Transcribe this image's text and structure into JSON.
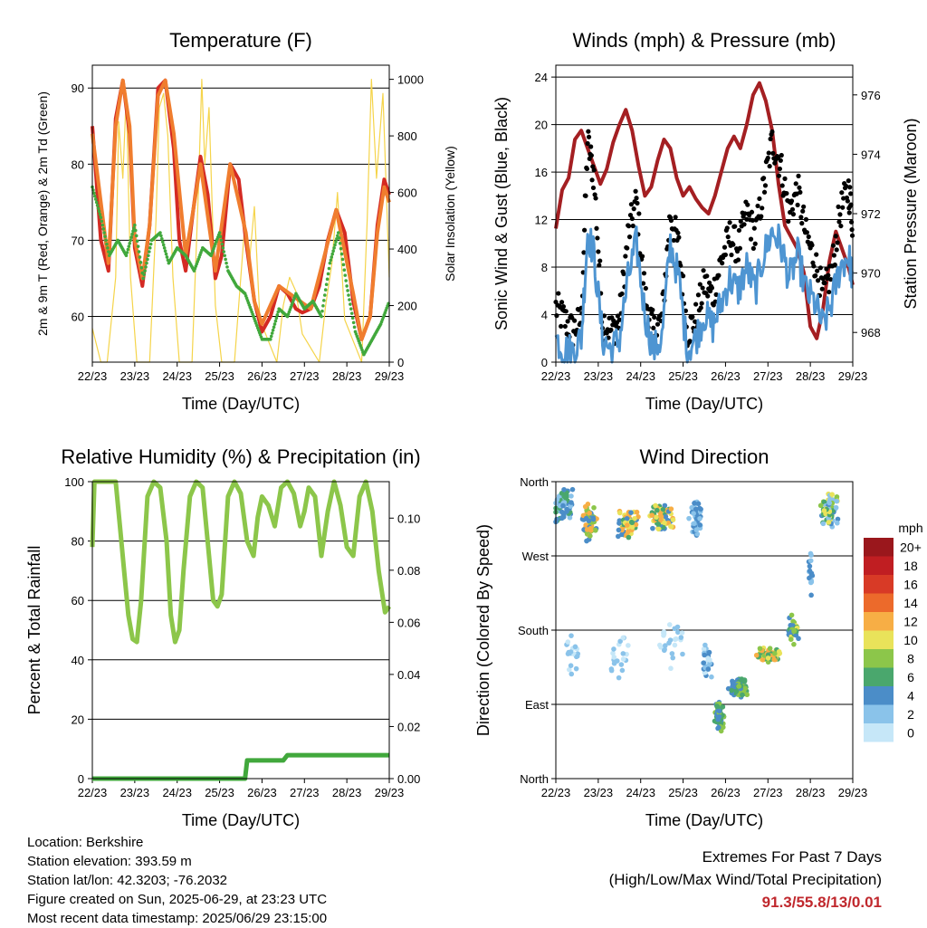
{
  "chart_data": [
    {
      "type": "line",
      "title": "Temperature (F)",
      "xlabel": "Time (Day/UTC)",
      "ylabel": "2m & 9m T (Red, Orange) & 2m Td (Green)",
      "ylabel_right": "Solar Insolation (Yellow)",
      "x_ticks": [
        "22/23",
        "23/23",
        "24/23",
        "25/23",
        "26/23",
        "27/23",
        "28/23",
        "29/23"
      ],
      "ylim": [
        54,
        93
      ],
      "y_ticks": [
        60,
        70,
        80,
        90
      ],
      "ylim_right": [
        0,
        1050
      ],
      "y_ticks_right": [
        0,
        200,
        400,
        600,
        800,
        1000
      ],
      "grid": "horizontal",
      "series": [
        {
          "label": "2m T",
          "color": "#d42a23",
          "style": "line",
          "x": [
            0,
            0.2,
            0.38,
            0.55,
            0.72,
            0.88,
            1.0,
            1.18,
            1.35,
            1.55,
            1.72,
            1.92,
            2.05,
            2.2,
            2.38,
            2.55,
            2.72,
            2.9,
            3.05,
            3.25,
            3.45,
            3.62,
            3.82,
            4.0,
            4.2,
            4.4,
            4.6,
            4.8,
            4.95,
            5.15,
            5.35,
            5.55,
            5.75,
            5.95,
            6.15,
            6.35,
            6.55,
            6.72,
            6.88,
            7.0
          ],
          "y": [
            85,
            70,
            66,
            86,
            91,
            84,
            69,
            64,
            72,
            90,
            91,
            82,
            70,
            66,
            74,
            81,
            76,
            65,
            68,
            80,
            78,
            70,
            62,
            58,
            60,
            64,
            63,
            61,
            60.5,
            61,
            64,
            70,
            74,
            71,
            62,
            57,
            60,
            72,
            78,
            76
          ]
        },
        {
          "label": "9m T",
          "color": "#f07d2e",
          "style": "line",
          "x": [
            0,
            0.38,
            0.55,
            0.72,
            0.88,
            1.0,
            1.18,
            1.35,
            1.55,
            1.72,
            1.92,
            2.2,
            2.38,
            2.55,
            2.9,
            3.25,
            3.62,
            3.82,
            4.0,
            4.4,
            5.15,
            5.75,
            6.15,
            6.35,
            6.55,
            6.72,
            6.88,
            7.0
          ],
          "y": [
            84,
            67,
            85,
            91,
            85,
            70,
            65,
            72,
            89,
            91,
            84,
            68,
            74,
            80,
            66,
            80,
            71,
            62,
            59,
            64,
            61,
            74,
            63,
            57,
            60,
            71,
            77,
            75
          ]
        },
        {
          "label": "2m Td",
          "color": "#41a83c",
          "style": "dots",
          "x": [
            0,
            0.2,
            0.4,
            0.6,
            0.8,
            1.0,
            1.2,
            1.4,
            1.6,
            1.8,
            2.0,
            2.2,
            2.4,
            2.6,
            2.8,
            3.0,
            3.2,
            3.4,
            3.6,
            3.8,
            4.0,
            4.2,
            4.4,
            4.6,
            4.8,
            5.0,
            5.2,
            5.4,
            5.6,
            5.8,
            6.0,
            6.2,
            6.4,
            6.6,
            6.8,
            7.0
          ],
          "y": [
            77,
            73,
            68,
            70,
            68,
            72,
            65,
            70,
            71,
            67,
            69,
            68,
            66,
            69,
            68,
            71,
            66,
            64,
            63,
            60,
            57,
            57,
            61,
            60,
            63,
            61,
            62,
            60,
            67,
            71,
            64,
            58,
            55,
            57,
            59,
            62
          ]
        },
        {
          "label": "Solar Insolation",
          "color": "#f5d44a",
          "style": "line",
          "axis": "right",
          "x": [
            0,
            0.2,
            0.35,
            0.55,
            0.62,
            0.72,
            0.8,
            0.9,
            1.05,
            1.35,
            1.5,
            1.58,
            1.68,
            1.78,
            1.9,
            2.05,
            2.35,
            2.5,
            2.58,
            2.65,
            2.75,
            2.9,
            3.05,
            3.35,
            3.5,
            3.6,
            3.7,
            3.82,
            3.95,
            4.35,
            4.5,
            4.65,
            4.8,
            4.95,
            5.35,
            5.5,
            5.65,
            5.78,
            5.95,
            6.35,
            6.48,
            6.58,
            6.7,
            6.85,
            7.0
          ],
          "y": [
            120,
            0,
            0,
            300,
            850,
            650,
            950,
            300,
            0,
            0,
            500,
            900,
            950,
            800,
            300,
            0,
            0,
            600,
            1000,
            700,
            900,
            200,
            0,
            0,
            300,
            500,
            350,
            550,
            150,
            0,
            200,
            300,
            250,
            100,
            0,
            200,
            350,
            600,
            150,
            0,
            500,
            1000,
            650,
            950,
            300
          ]
        }
      ]
    },
    {
      "type": "scatter",
      "title": "Winds (mph) & Pressure (mb)",
      "xlabel": "Time (Day/UTC)",
      "ylabel": "Sonic Wind & Gust (Blue, Black)",
      "ylabel_right": "Station Pressure (Maroon)",
      "x_ticks": [
        "22/23",
        "23/23",
        "24/23",
        "25/23",
        "26/23",
        "27/23",
        "28/23",
        "29/23"
      ],
      "ylim": [
        0,
        25
      ],
      "y_ticks": [
        0,
        4,
        8,
        12,
        16,
        20,
        24
      ],
      "ylim_right": [
        967,
        977
      ],
      "y_ticks_right": [
        968,
        970,
        972,
        974,
        976
      ],
      "grid": "horizontal",
      "series": [
        {
          "label": "Gust",
          "color": "#000000",
          "style": "dots",
          "x": [
            0,
            0.2,
            0.4,
            0.6,
            0.75,
            0.9,
            1.1,
            1.3,
            1.5,
            1.7,
            1.9,
            2.1,
            2.3,
            2.5,
            2.7,
            2.9,
            3.1,
            3.3,
            3.5,
            3.7,
            3.9,
            4.1,
            4.3,
            4.5,
            4.7,
            4.9,
            5.1,
            5.3,
            5.5,
            5.7,
            5.9,
            6.1,
            6.3,
            6.5,
            6.7,
            6.9,
            7.0
          ],
          "y": [
            4,
            3,
            2,
            3,
            18,
            15,
            3,
            2,
            3,
            10,
            13,
            5,
            2,
            3,
            12,
            9,
            2,
            3,
            6,
            5,
            8,
            10,
            9,
            12,
            10,
            14,
            18,
            16,
            12,
            14,
            10,
            8,
            5,
            7,
            12,
            14,
            11
          ]
        },
        {
          "label": "Sonic Wind",
          "color": "#4e95d2",
          "style": "line",
          "x": [
            0,
            0.2,
            0.4,
            0.6,
            0.75,
            0.9,
            1.1,
            1.3,
            1.5,
            1.7,
            1.9,
            2.1,
            2.3,
            2.5,
            2.7,
            2.9,
            3.1,
            3.3,
            3.5,
            3.7,
            3.9,
            4.1,
            4.3,
            4.5,
            4.7,
            4.9,
            5.1,
            5.3,
            5.5,
            5.7,
            5.9,
            6.1,
            6.3,
            6.5,
            6.7,
            6.9,
            7.0
          ],
          "y": [
            2,
            1,
            1,
            2,
            11,
            9,
            2,
            1,
            2,
            7,
            10,
            4,
            1,
            2,
            10,
            7,
            1,
            2,
            4,
            3,
            5,
            7,
            6,
            8,
            6,
            9,
            11,
            10,
            7,
            9,
            6,
            5,
            3,
            5,
            8,
            9,
            7
          ]
        },
        {
          "label": "Station Pressure",
          "color": "#a41f22",
          "style": "line",
          "axis": "right",
          "x": [
            0,
            0.15,
            0.3,
            0.45,
            0.6,
            0.75,
            0.9,
            1.05,
            1.2,
            1.35,
            1.5,
            1.65,
            1.8,
            1.95,
            2.1,
            2.25,
            2.4,
            2.55,
            2.7,
            2.85,
            3.0,
            3.15,
            3.3,
            3.45,
            3.6,
            3.75,
            3.9,
            4.05,
            4.2,
            4.35,
            4.5,
            4.65,
            4.8,
            4.95,
            5.1,
            5.25,
            5.4,
            5.55,
            5.7,
            5.85,
            6.0,
            6.15,
            6.3,
            6.45,
            6.6,
            6.75,
            6.9,
            7.0
          ],
          "y": [
            971.5,
            972.8,
            973.2,
            974.5,
            974.8,
            974.2,
            973.6,
            973.0,
            973.5,
            974.4,
            975.0,
            975.5,
            974.8,
            973.6,
            972.6,
            972.9,
            973.8,
            974.5,
            974.2,
            973.2,
            972.6,
            972.9,
            972.5,
            972.2,
            972.0,
            972.6,
            973.4,
            974.2,
            974.6,
            974.2,
            975.0,
            976.0,
            976.4,
            975.8,
            974.8,
            973.0,
            971.6,
            971.2,
            970.8,
            970.0,
            968.2,
            967.8,
            968.8,
            970.4,
            971.4,
            970.8,
            970.2,
            969.6
          ]
        }
      ]
    },
    {
      "type": "line",
      "title": "Relative Humidity (%) & Precipitation (in)",
      "xlabel": "Time (Day/UTC)",
      "ylabel": "Percent & Total Rainfall",
      "x_ticks": [
        "22/23",
        "23/23",
        "24/23",
        "25/23",
        "26/23",
        "27/23",
        "28/23",
        "29/23"
      ],
      "ylim": [
        0,
        100
      ],
      "y_ticks": [
        0,
        20,
        40,
        60,
        80,
        100
      ],
      "ylim_right": [
        0,
        0.114
      ],
      "y_ticks_right": [
        "0.00",
        "0.02",
        "0.04",
        "0.06",
        "0.08",
        "0.10"
      ],
      "grid": "horizontal",
      "series": [
        {
          "label": "Relative Humidity",
          "color": "#8cc64a",
          "style": "line",
          "x": [
            0,
            0.05,
            0.15,
            0.35,
            0.55,
            0.65,
            0.75,
            0.85,
            0.95,
            1.05,
            1.15,
            1.3,
            1.45,
            1.6,
            1.75,
            1.85,
            1.95,
            2.05,
            2.15,
            2.3,
            2.45,
            2.6,
            2.75,
            2.85,
            2.95,
            3.05,
            3.2,
            3.35,
            3.5,
            3.65,
            3.8,
            3.9,
            4.0,
            4.15,
            4.3,
            4.45,
            4.6,
            4.75,
            4.9,
            5.0,
            5.1,
            5.25,
            5.4,
            5.55,
            5.7,
            5.85,
            6.0,
            6.15,
            6.3,
            6.45,
            6.6,
            6.75,
            6.9,
            7.0
          ],
          "y": [
            78,
            100,
            100,
            100,
            100,
            85,
            70,
            55,
            47,
            46,
            60,
            95,
            100,
            98,
            80,
            55,
            46,
            50,
            70,
            95,
            100,
            98,
            75,
            60,
            58,
            62,
            95,
            100,
            96,
            80,
            75,
            88,
            95,
            92,
            85,
            98,
            100,
            96,
            85,
            90,
            98,
            95,
            75,
            90,
            100,
            92,
            78,
            75,
            95,
            100,
            90,
            70,
            56,
            58
          ]
        },
        {
          "label": "Total Rainfall",
          "color": "#41a83c",
          "style": "line",
          "axis": "right",
          "x": [
            0,
            1.0,
            2.0,
            3.0,
            3.6,
            3.65,
            4.0,
            4.5,
            4.6,
            5.0,
            6.0,
            7.0
          ],
          "y": [
            0,
            0,
            0,
            0,
            0,
            0.007,
            0.007,
            0.007,
            0.009,
            0.009,
            0.009,
            0.009
          ]
        }
      ]
    },
    {
      "type": "scatter",
      "title": "Wind Direction",
      "xlabel": "Time (Day/UTC)",
      "ylabel": "Direction (Colored By Speed)",
      "x_ticks": [
        "22/23",
        "23/23",
        "24/23",
        "25/23",
        "26/23",
        "27/23",
        "28/23",
        "29/23"
      ],
      "y_ticks": [
        "North",
        "East",
        "South",
        "West",
        "North"
      ],
      "ylim": [
        0,
        360
      ],
      "grid": "horizontal",
      "colorbar": {
        "title": "mph",
        "labels": [
          "0",
          "2",
          "4",
          "6",
          "8",
          "10",
          "12",
          "14",
          "16",
          "18",
          "20+"
        ],
        "colors": [
          "#c6e7f8",
          "#8ac3ea",
          "#4b8dc8",
          "#4aa76d",
          "#8cc64a",
          "#e9e35a",
          "#f7ae45",
          "#ec6a2b",
          "#d83a26",
          "#c01e22",
          "#9a171c"
        ]
      },
      "clusters": [
        {
          "x": 0.2,
          "y": 330,
          "spread_x": 0.25,
          "spread_y": 22,
          "n": 60,
          "speeds": [
            2,
            4,
            6
          ]
        },
        {
          "x": 0.8,
          "y": 310,
          "spread_x": 0.2,
          "spread_y": 25,
          "n": 55,
          "speeds": [
            4,
            8,
            12
          ]
        },
        {
          "x": 1.7,
          "y": 310,
          "spread_x": 0.3,
          "spread_y": 18,
          "n": 70,
          "speeds": [
            6,
            10,
            12,
            4
          ]
        },
        {
          "x": 2.5,
          "y": 315,
          "spread_x": 0.3,
          "spread_y": 20,
          "n": 70,
          "speeds": [
            6,
            10,
            12,
            4
          ]
        },
        {
          "x": 3.3,
          "y": 315,
          "spread_x": 0.2,
          "spread_y": 25,
          "n": 40,
          "speeds": [
            2,
            4
          ]
        },
        {
          "x": 0.4,
          "y": 150,
          "spread_x": 0.2,
          "spread_y": 30,
          "n": 20,
          "speeds": [
            0,
            2
          ]
        },
        {
          "x": 1.5,
          "y": 150,
          "spread_x": 0.3,
          "spread_y": 30,
          "n": 20,
          "speeds": [
            0,
            2
          ]
        },
        {
          "x": 2.7,
          "y": 160,
          "spread_x": 0.3,
          "spread_y": 35,
          "n": 25,
          "speeds": [
            0,
            2
          ]
        },
        {
          "x": 3.55,
          "y": 140,
          "spread_x": 0.15,
          "spread_y": 30,
          "n": 25,
          "speeds": [
            0,
            2,
            4
          ]
        },
        {
          "x": 3.85,
          "y": 75,
          "spread_x": 0.12,
          "spread_y": 20,
          "n": 60,
          "speeds": [
            4,
            6,
            8
          ]
        },
        {
          "x": 4.3,
          "y": 110,
          "spread_x": 0.25,
          "spread_y": 15,
          "n": 70,
          "speeds": [
            4,
            6,
            8
          ]
        },
        {
          "x": 5.0,
          "y": 150,
          "spread_x": 0.3,
          "spread_y": 10,
          "n": 70,
          "speeds": [
            6,
            8,
            10,
            12
          ]
        },
        {
          "x": 5.6,
          "y": 180,
          "spread_x": 0.15,
          "spread_y": 20,
          "n": 50,
          "speeds": [
            6,
            8,
            10,
            4
          ]
        },
        {
          "x": 6.45,
          "y": 325,
          "spread_x": 0.25,
          "spread_y": 22,
          "n": 80,
          "speeds": [
            2,
            4,
            6,
            8,
            10
          ]
        },
        {
          "x": 6.0,
          "y": 260,
          "spread_x": 0.05,
          "spread_y": 40,
          "n": 15,
          "speeds": [
            2,
            4
          ]
        }
      ]
    }
  ],
  "info": {
    "location": "Location: Berkshire",
    "elevation": "Station elevation: 393.59 m",
    "latlon": "Station lat/lon: 42.3203; -76.2032",
    "created": "Figure created on Sun, 2025-06-29, at 23:23 UTC",
    "recent": "Most recent data timestamp: 2025/06/29 23:15:00"
  },
  "extremes": {
    "title": "Extremes For Past 7 Days",
    "subtitle": "(High/Low/Max Wind/Total Precipitation)",
    "values": "91.3/55.8/13/0.01"
  }
}
